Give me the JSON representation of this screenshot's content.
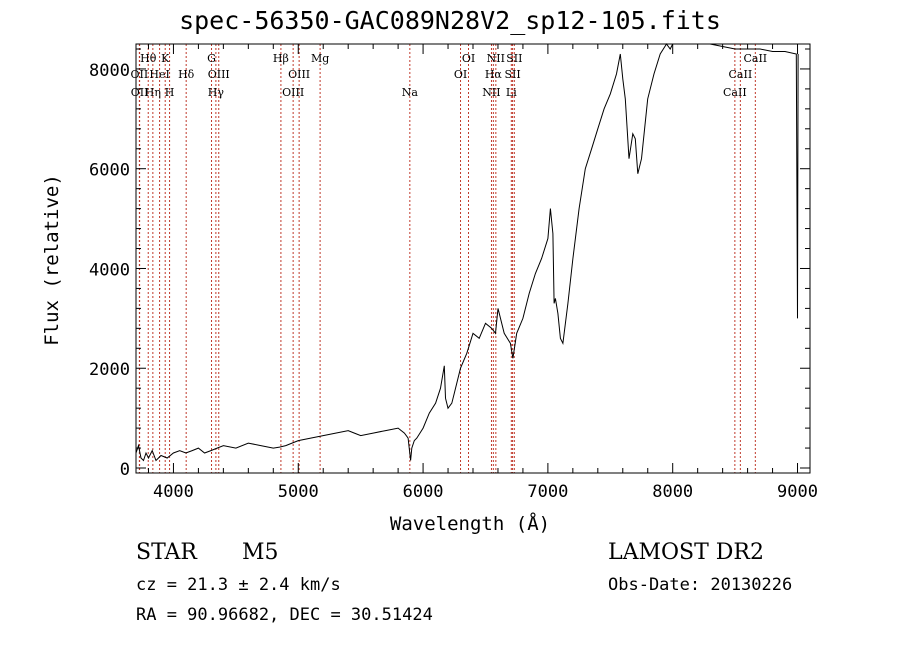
{
  "title": "spec-56350-GAC089N28V2_sp12-105.fits",
  "footer": {
    "object_class": "STAR",
    "subclass": "M5",
    "survey": "LAMOST DR2",
    "cz": "cz = 21.3 ± 2.4 km/s",
    "obs_date": "Obs-Date: 20130226",
    "coords": "RA =  90.96682, DEC =  30.51424"
  },
  "chart_data": {
    "type": "line",
    "title": "spec-56350-GAC089N28V2_sp12-105.fits",
    "xlabel": "Wavelength (Å)",
    "ylabel": "Flux (relative)",
    "xlim": [
      3700,
      9100
    ],
    "ylim": [
      -100,
      8500
    ],
    "x_ticks": [
      4000,
      5000,
      6000,
      7000,
      8000,
      9000
    ],
    "y_ticks": [
      0,
      2000,
      4000,
      6000,
      8000
    ],
    "grid": false,
    "line_color": "#000000",
    "marker_color": "#c0392b",
    "series": [
      {
        "x": [
          3700,
          3720,
          3740,
          3760,
          3780,
          3800,
          3830,
          3860,
          3900,
          3950,
          4000,
          4050,
          4100,
          4150,
          4200,
          4250,
          4300,
          4350,
          4400,
          4500,
          4600,
          4700,
          4800,
          4850,
          4900,
          4950,
          5000,
          5100,
          5200,
          5300,
          5400,
          5450,
          5500,
          5600,
          5700,
          5800,
          5850,
          5880,
          5900,
          5910,
          5930,
          5950,
          6000,
          6050,
          6100,
          6140,
          6170,
          6180,
          6200,
          6230,
          6250,
          6300,
          6350,
          6400,
          6450,
          6500,
          6550,
          6580,
          6600,
          6650,
          6700,
          6720,
          6750,
          6800,
          6850,
          6900,
          6950,
          7000,
          7020,
          7040,
          7050,
          7060,
          7080,
          7100,
          7120,
          7140,
          7160,
          7200,
          7250,
          7300,
          7350,
          7400,
          7450,
          7500,
          7550,
          7580,
          7600,
          7620,
          7650,
          7680,
          7700,
          7720,
          7750,
          7800,
          7850,
          7900,
          7950,
          7980,
          8000,
          8100,
          8200,
          8300,
          8400,
          8500,
          8600,
          8700,
          8800,
          8900,
          8990,
          9000,
          9005
        ],
        "values": [
          300,
          450,
          200,
          150,
          300,
          200,
          350,
          150,
          250,
          200,
          300,
          350,
          300,
          350,
          400,
          300,
          350,
          400,
          450,
          400,
          500,
          450,
          400,
          420,
          450,
          500,
          550,
          600,
          650,
          700,
          750,
          700,
          650,
          700,
          750,
          800,
          700,
          600,
          150,
          400,
          550,
          600,
          800,
          1100,
          1300,
          1600,
          2050,
          1400,
          1200,
          1300,
          1500,
          2000,
          2300,
          2700,
          2600,
          2900,
          2800,
          2700,
          3200,
          2700,
          2500,
          2200,
          2700,
          3000,
          3500,
          3900,
          4200,
          4600,
          5200,
          4700,
          3300,
          3400,
          3100,
          2600,
          2500,
          2900,
          3300,
          4200,
          5200,
          6000,
          6400,
          6800,
          7200,
          7500,
          7900,
          8300,
          7800,
          7400,
          6200,
          6700,
          6600,
          5900,
          6200,
          7400,
          7900,
          8300,
          8500,
          8400,
          8600,
          8550,
          8500,
          8500,
          8450,
          8400,
          8400,
          8400,
          8350,
          8350,
          8300,
          3000,
          8300
        ]
      }
    ],
    "line_markers": [
      {
        "label": "Hθ",
        "wave": 3798,
        "row": 0
      },
      {
        "label": "OII",
        "wave": 3727,
        "row": 1
      },
      {
        "label": "OII",
        "wave": 3729,
        "row": 2
      },
      {
        "label": "K",
        "wave": 3934,
        "row": 0
      },
      {
        "label": "H",
        "wave": 3969,
        "row": 2
      },
      {
        "label": "Hη",
        "wave": 3835,
        "row": 2
      },
      {
        "label": "HeI",
        "wave": 3889,
        "row": 1
      },
      {
        "label": "Hδ",
        "wave": 4102,
        "row": 1
      },
      {
        "label": "G",
        "wave": 4305,
        "row": 0
      },
      {
        "label": "OIII",
        "wave": 4363,
        "row": 1
      },
      {
        "label": "Hγ",
        "wave": 4340,
        "row": 2
      },
      {
        "label": "Hβ",
        "wave": 4861,
        "row": 0
      },
      {
        "label": "OIII",
        "wave": 5007,
        "row": 1
      },
      {
        "label": "OIII",
        "wave": 4959,
        "row": 2
      },
      {
        "label": "Mg",
        "wave": 5175,
        "row": 0
      },
      {
        "label": "Na",
        "wave": 5894,
        "row": 2
      },
      {
        "label": "OI",
        "wave": 6364,
        "row": 0
      },
      {
        "label": "OI",
        "wave": 6300,
        "row": 1
      },
      {
        "label": "NII",
        "wave": 6583,
        "row": 0
      },
      {
        "label": "Hα",
        "wave": 6563,
        "row": 1
      },
      {
        "label": "NII",
        "wave": 6548,
        "row": 2
      },
      {
        "label": "SII",
        "wave": 6731,
        "row": 0
      },
      {
        "label": "SII",
        "wave": 6717,
        "row": 1
      },
      {
        "label": "Li",
        "wave": 6707,
        "row": 2
      },
      {
        "label": "CaII",
        "wave": 8662,
        "row": 0
      },
      {
        "label": "CaII",
        "wave": 8542,
        "row": 1
      },
      {
        "label": "CaII",
        "wave": 8498,
        "row": 2
      }
    ]
  }
}
